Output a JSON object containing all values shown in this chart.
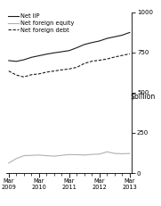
{
  "title": "$billion",
  "ylim": [
    0,
    1000
  ],
  "yticks": [
    0,
    250,
    500,
    750,
    1000
  ],
  "legend": [
    "Net IIP",
    "Net foreign equity",
    "Net foreign debt"
  ],
  "x_labels": [
    "Mar\n2009",
    "Mar\n2010",
    "Mar\n2011",
    "Mar\n2012",
    "Mar\n2013"
  ],
  "x_positions": [
    0,
    4,
    8,
    12,
    16
  ],
  "net_iip": [
    700,
    695,
    705,
    720,
    730,
    740,
    748,
    755,
    762,
    780,
    800,
    812,
    822,
    838,
    848,
    858,
    875
  ],
  "net_foreign_equity": [
    62,
    90,
    108,
    110,
    112,
    108,
    105,
    110,
    115,
    114,
    112,
    116,
    118,
    132,
    122,
    120,
    122
  ],
  "net_foreign_debt": [
    635,
    610,
    598,
    612,
    617,
    628,
    635,
    642,
    648,
    658,
    682,
    696,
    702,
    710,
    722,
    732,
    742
  ],
  "color_iip": "#1a1a1a",
  "color_equity": "#b0b0b0",
  "color_debt": "#1a1a1a",
  "background_color": "#ffffff",
  "n_points": 17
}
